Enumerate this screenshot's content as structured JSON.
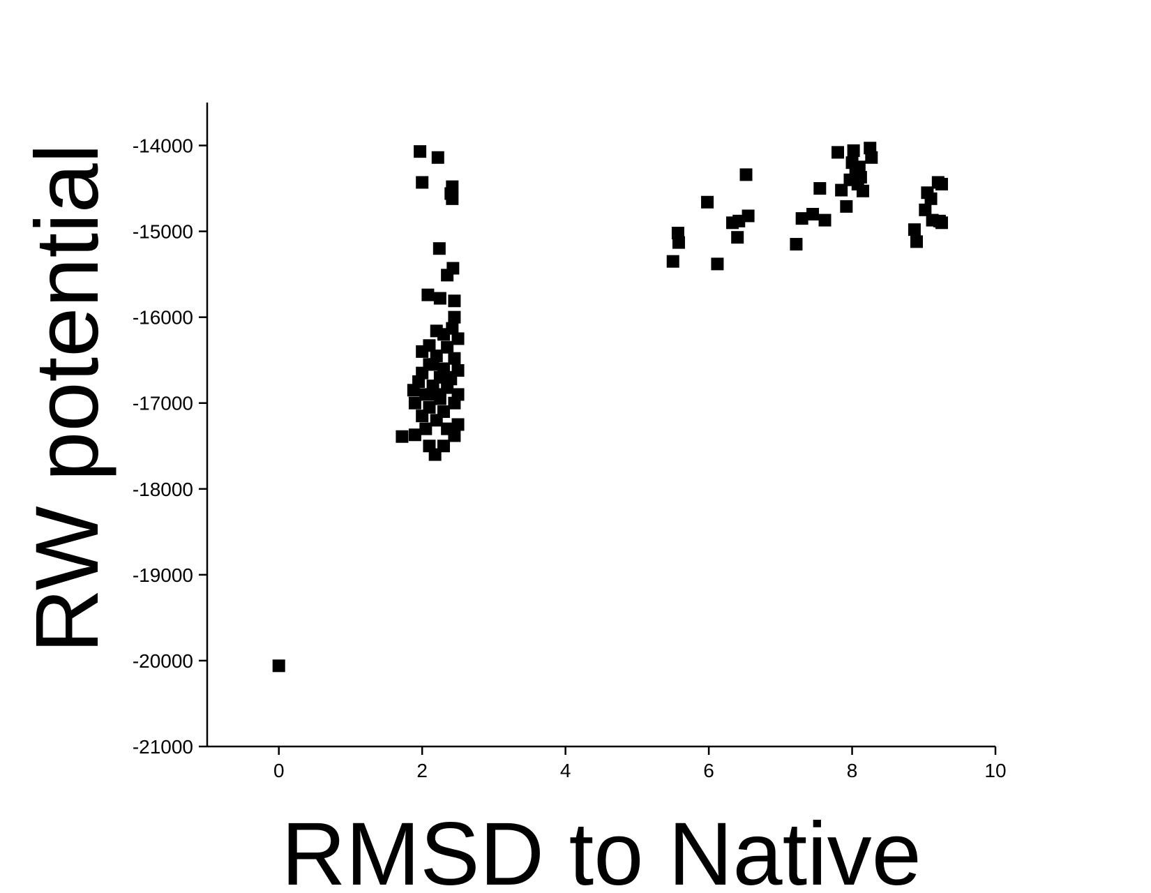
{
  "chart_data": {
    "type": "scatter",
    "xlabel": "RMSD to Native",
    "ylabel": "RW potential",
    "xlim": [
      -1,
      10
    ],
    "ylim": [
      -21000,
      -13500
    ],
    "xticks": [
      0,
      2,
      4,
      6,
      8,
      10
    ],
    "yticks": [
      -21000,
      -20000,
      -19000,
      -18000,
      -17000,
      -16000,
      -15000,
      -14000
    ],
    "color": "#000000",
    "series": [
      {
        "name": "RW potential",
        "x": [
          0,
          1.97,
          2.22,
          2.0,
          2.42,
          2.4,
          2.42,
          2.24,
          2.43,
          2.35,
          2.08,
          2.25,
          2.45,
          2.45,
          2.42,
          2.2,
          2.3,
          2.5,
          2.1,
          2.35,
          2.0,
          2.2,
          2.45,
          2.1,
          2.3,
          2.5,
          2.0,
          2.25,
          2.4,
          1.95,
          2.15,
          2.35,
          1.88,
          2.05,
          2.5,
          2.25,
          1.9,
          2.1,
          2.45,
          2.3,
          2.0,
          2.2,
          2.5,
          2.05,
          2.35,
          1.72,
          1.9,
          2.45,
          2.1,
          2.3,
          2.18,
          2.15,
          2.35,
          2.2,
          5.5,
          5.57,
          5.58,
          5.98,
          6.12,
          6.33,
          6.4,
          6.42,
          6.52,
          6.55,
          7.22,
          7.3,
          7.45,
          7.55,
          7.62,
          7.8,
          7.85,
          7.92,
          7.97,
          8.0,
          8.02,
          8.05,
          8.08,
          8.1,
          8.15,
          8.25,
          8.27,
          8.12,
          8.87,
          8.9,
          9.02,
          9.05,
          9.1,
          9.12,
          9.2,
          9.22,
          9.25,
          9.25
        ],
        "values": [
          -20060,
          -14070,
          -14140,
          -14430,
          -14480,
          -14560,
          -14620,
          -15200,
          -15430,
          -15510,
          -15740,
          -15780,
          -15810,
          -16000,
          -16130,
          -16160,
          -16200,
          -16250,
          -16330,
          -16350,
          -16400,
          -16450,
          -16480,
          -16550,
          -16600,
          -16620,
          -16650,
          -16700,
          -16720,
          -16750,
          -16800,
          -16820,
          -16850,
          -16900,
          -16900,
          -16950,
          -17000,
          -17050,
          -17000,
          -17100,
          -17150,
          -17200,
          -17250,
          -17300,
          -17300,
          -17390,
          -17370,
          -17380,
          -17500,
          -17500,
          -17600,
          -16550,
          -16700,
          -16900,
          -15350,
          -15020,
          -15130,
          -14660,
          -15380,
          -14900,
          -15070,
          -14880,
          -14340,
          -14820,
          -15150,
          -14850,
          -14800,
          -14500,
          -14870,
          -14080,
          -14520,
          -14710,
          -14400,
          -14200,
          -14060,
          -14300,
          -14450,
          -14250,
          -14530,
          -14030,
          -14140,
          -14370,
          -14980,
          -15120,
          -14750,
          -14550,
          -14620,
          -14870,
          -14430,
          -14880,
          -14450,
          -14900
        ]
      }
    ]
  }
}
